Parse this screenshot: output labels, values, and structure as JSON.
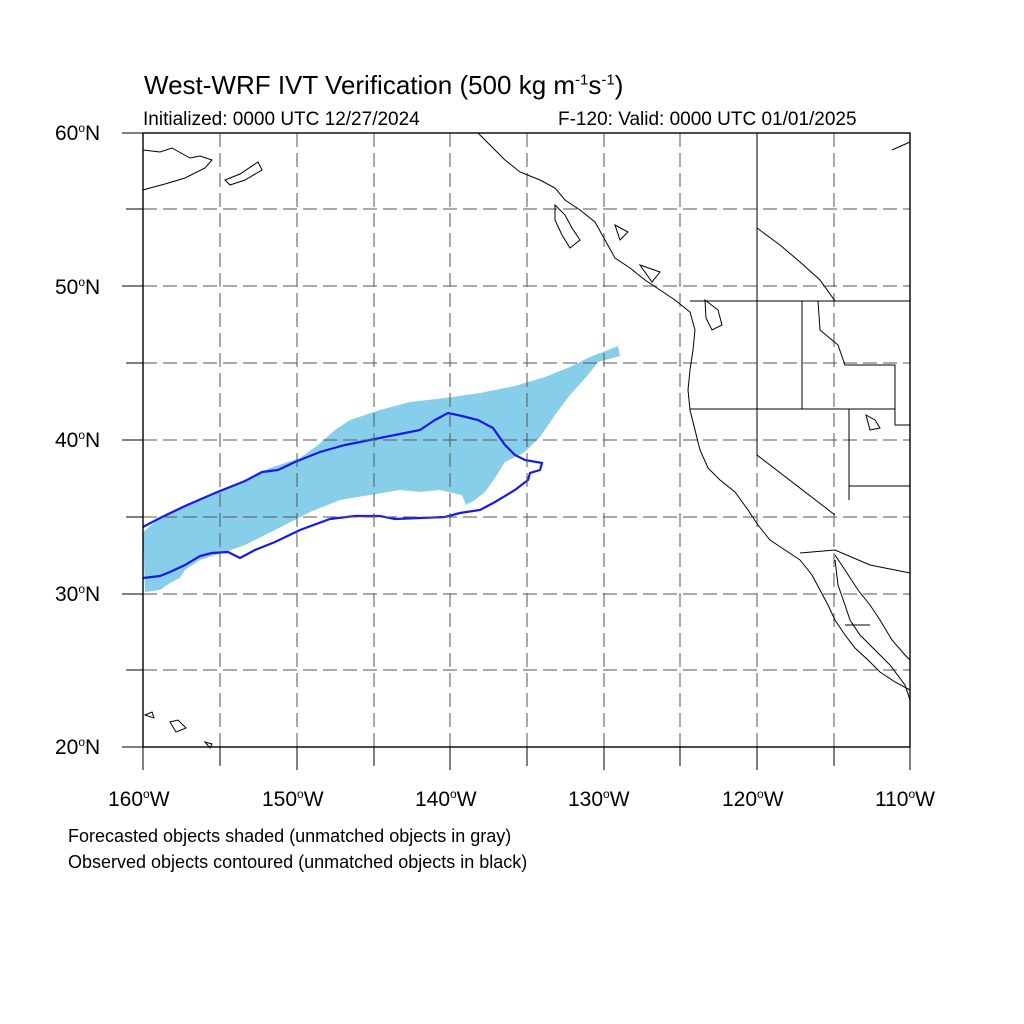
{
  "header": {
    "title_main": "West-WRF IVT Verification (500 kg m",
    "sup_1": "-1",
    "title_mid": "s",
    "sup_2": "-1",
    "title_end": ")",
    "initialized": "Initialized: 0000 UTC 12/27/2024",
    "valid": "F-120: Valid: 0000 UTC 01/01/2025"
  },
  "axes": {
    "lat_labels": [
      "60",
      "50",
      "40",
      "30",
      "20"
    ],
    "lat_suffix": "N",
    "lon_labels": [
      "160",
      "150",
      "140",
      "130",
      "120",
      "110"
    ],
    "lon_suffix": "W",
    "degree_symbol": "o"
  },
  "map": {
    "lon_range": [
      -160,
      -110
    ],
    "lat_range": [
      20,
      60
    ],
    "forecast_color": "#87ceeb",
    "observed_color": "#1a1ae6",
    "coastline_color": "#000000"
  },
  "legend_notes": [
    "Forecasted objects shaded (unmatched objects in gray)",
    "Observed objects contoured (unmatched objects in black)"
  ]
}
